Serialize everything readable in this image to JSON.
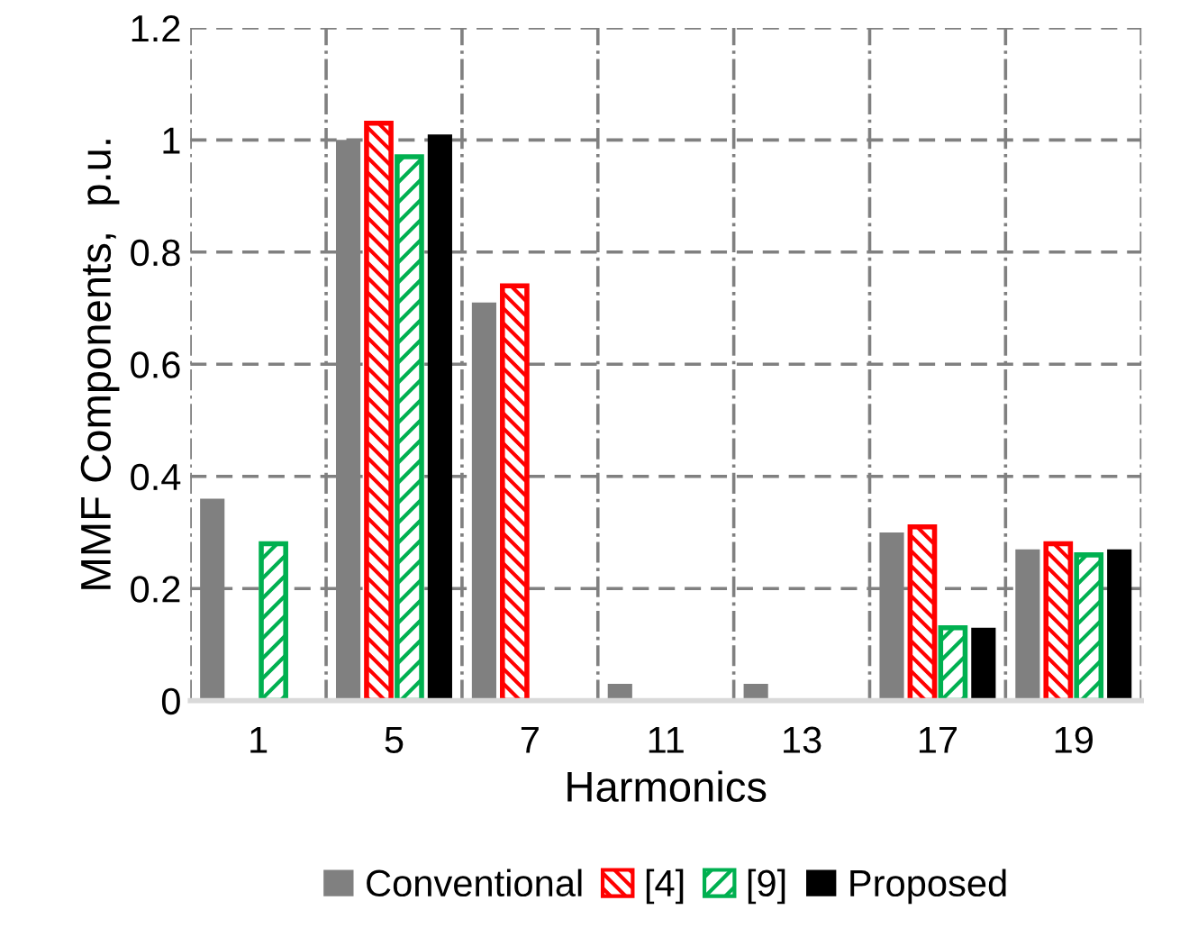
{
  "chart_data": {
    "type": "bar",
    "xlabel": "Harmonics",
    "ylabel": "MMF Components,  p.u.",
    "categories": [
      "1",
      "5",
      "7",
      "11",
      "13",
      "17",
      "19"
    ],
    "series": [
      {
        "name": "Conventional",
        "color": "#808080",
        "values": [
          0.36,
          1.0,
          0.71,
          0.03,
          0.03,
          0.3,
          0.27
        ]
      },
      {
        "name": "[4]",
        "color": "#ff0000",
        "values": [
          null,
          1.03,
          0.74,
          null,
          null,
          0.31,
          0.28
        ]
      },
      {
        "name": "[9]",
        "color": "#00b050",
        "values": [
          0.28,
          0.97,
          null,
          null,
          null,
          0.13,
          0.26
        ]
      },
      {
        "name": "Proposed",
        "color": "#000000",
        "values": [
          null,
          1.01,
          null,
          null,
          null,
          0.13,
          0.27
        ]
      }
    ],
    "ylim": [
      0,
      1.2
    ],
    "yticks": [
      0,
      0.2,
      0.4,
      0.6,
      0.8,
      1,
      1.2
    ],
    "grid": true,
    "legend": "bottom"
  }
}
